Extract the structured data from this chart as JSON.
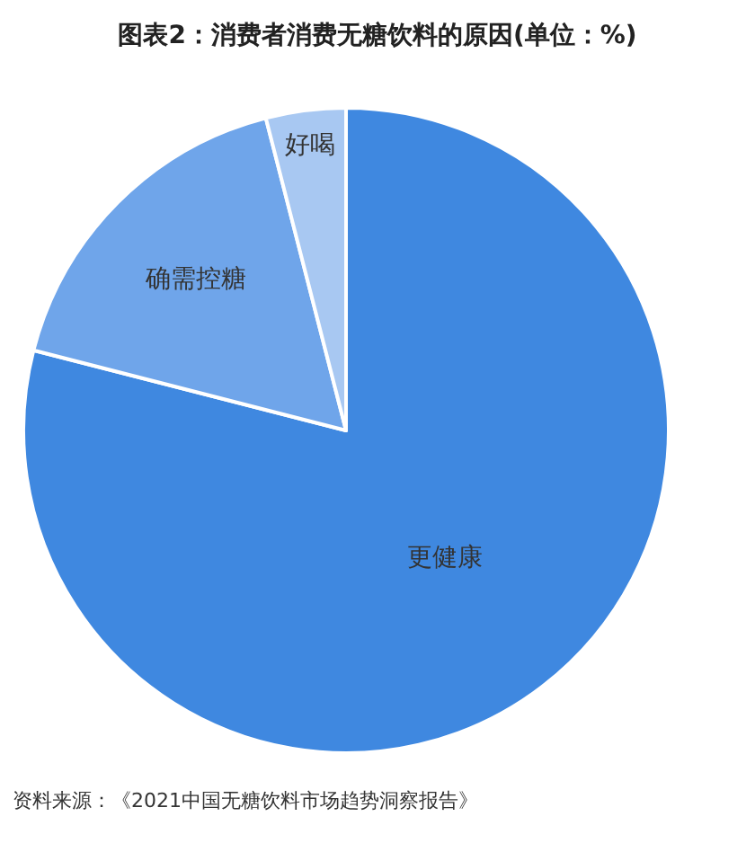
{
  "chart_data": {
    "type": "pie",
    "title": "图表2：消费者消费无糖饮料的原因(单位：%)",
    "categories": [
      "更健康",
      "确需控糖",
      "好喝"
    ],
    "values": [
      79,
      17,
      4
    ],
    "colors": [
      "#3f88e0",
      "#6fa5ea",
      "#a8c8f2"
    ],
    "annotations": [
      "资料来源：《2021中国无糖饮料市场趋势洞察报告》"
    ]
  }
}
